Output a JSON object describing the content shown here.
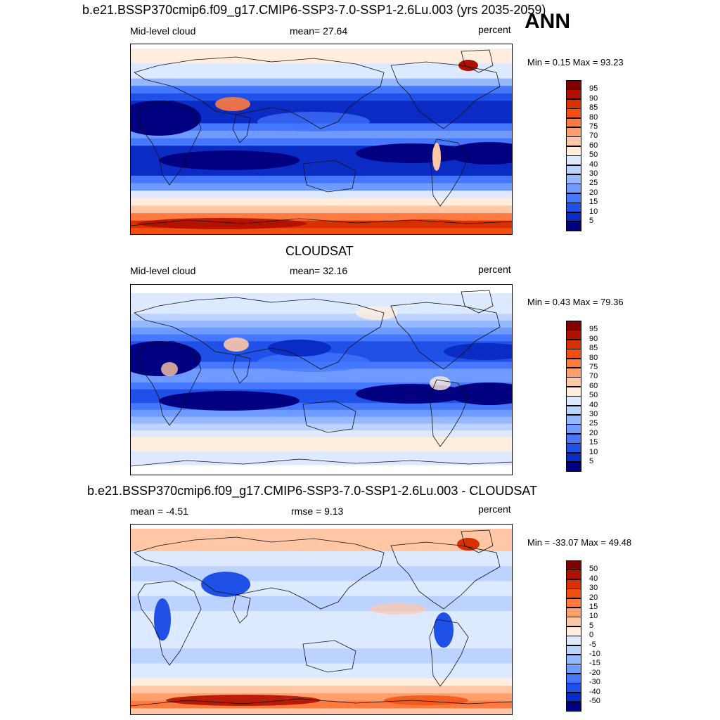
{
  "season": "ANN",
  "panels": [
    {
      "title": "b.e21.BSSP370cmip6.f09_g17.CMIP6-SSP3-7.0-SSP1-2.6Lu.003 (yrs 2035-2059)",
      "left_label": "Mid-level cloud",
      "center_label": "mean=  27.64",
      "units": "percent",
      "minmax": "Min =   0.15 Max =  93.23",
      "scale": "abs",
      "colorbar": [
        "95",
        "90",
        "85",
        "80",
        "75",
        "70",
        "60",
        "50",
        "40",
        "30",
        "25",
        "20",
        "15",
        "10",
        "5"
      ]
    },
    {
      "title": "CLOUDSAT",
      "left_label": "Mid-level cloud",
      "center_label": "mean=  32.16",
      "units": "percent",
      "minmax": "Min =   0.43 Max =  79.36",
      "scale": "abs",
      "colorbar": [
        "95",
        "90",
        "85",
        "80",
        "75",
        "70",
        "60",
        "50",
        "40",
        "30",
        "25",
        "20",
        "15",
        "10",
        "5"
      ]
    },
    {
      "title": "b.e21.BSSP370cmip6.f09_g17.CMIP6-SSP3-7.0-SSP1-2.6Lu.003 - CLOUDSAT",
      "left_label": "mean =  -4.51",
      "center_label": "rmse =    9.13",
      "units": "percent",
      "minmax": "Min = -33.07 Max =  49.48",
      "scale": "diff",
      "colorbar": [
        "50",
        "40",
        "30",
        "20",
        "15",
        "10",
        "5",
        "0",
        "-5",
        "-10",
        "-15",
        "-20",
        "-30",
        "-40",
        "-50"
      ]
    }
  ],
  "colors": {
    "scale16": [
      "#800000",
      "#b01000",
      "#d83000",
      "#f04f10",
      "#ff7a40",
      "#ff9f6e",
      "#ffc7a6",
      "#ffeedd",
      "#dde9ff",
      "#bdd3ff",
      "#96b8ff",
      "#6f9aff",
      "#4577ff",
      "#1f50e8",
      "#0a2cc4",
      "#000080"
    ]
  },
  "chart_data": [
    {
      "type": "heatmap",
      "title": "b.e21.BSSP370cmip6.f09_g17.CMIP6-SSP3-7.0-SSP1-2.6Lu.003 (yrs 2035-2059)",
      "variable": "Mid-level cloud",
      "units": "percent",
      "mean": 27.64,
      "min": 0.15,
      "max": 93.23,
      "levels": [
        5,
        10,
        15,
        20,
        25,
        30,
        40,
        50,
        60,
        70,
        75,
        80,
        85,
        90,
        95
      ]
    },
    {
      "type": "heatmap",
      "title": "CLOUDSAT",
      "variable": "Mid-level cloud",
      "units": "percent",
      "mean": 32.16,
      "min": 0.43,
      "max": 79.36,
      "levels": [
        5,
        10,
        15,
        20,
        25,
        30,
        40,
        50,
        60,
        70,
        75,
        80,
        85,
        90,
        95
      ]
    },
    {
      "type": "heatmap",
      "title": "b.e21.BSSP370cmip6.f09_g17.CMIP6-SSP3-7.0-SSP1-2.6Lu.003 - CLOUDSAT",
      "units": "percent",
      "mean": -4.51,
      "rmse": 9.13,
      "min": -33.07,
      "max": 49.48,
      "levels": [
        -50,
        -40,
        -30,
        -20,
        -15,
        -10,
        -5,
        0,
        5,
        10,
        15,
        20,
        30,
        40,
        50
      ]
    }
  ]
}
